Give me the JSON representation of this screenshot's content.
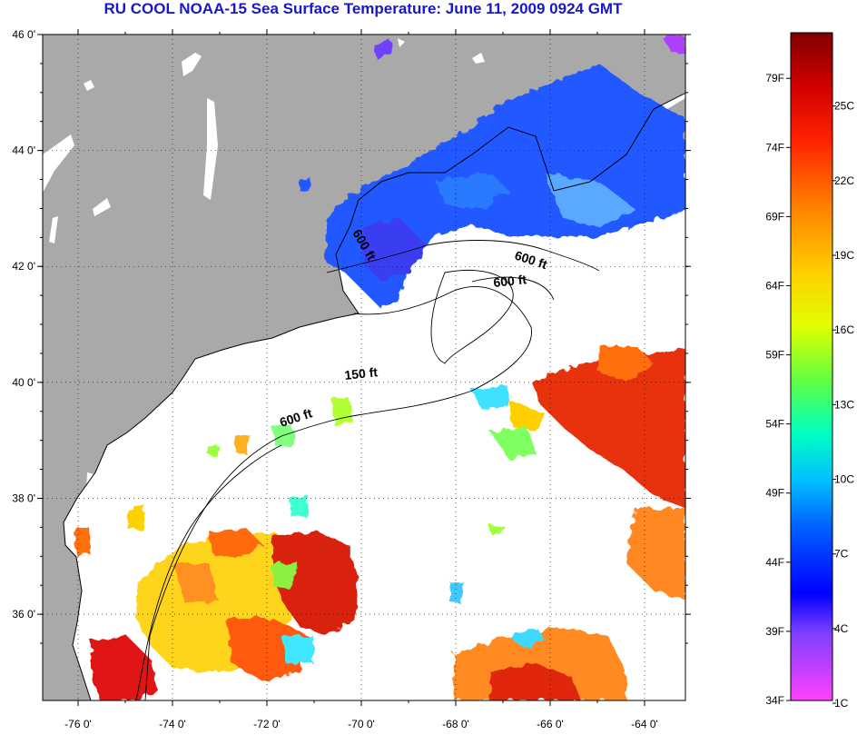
{
  "title": "RU COOL  NOAA-15  Sea Surface Temperature:  June 11, 2009 0924 GMT",
  "map": {
    "lat_ticks": [
      {
        "value": 46,
        "label": "46 0'"
      },
      {
        "value": 44,
        "label": "44 0'"
      },
      {
        "value": 42,
        "label": "42 0'"
      },
      {
        "value": 40,
        "label": "40 0'"
      },
      {
        "value": 38,
        "label": "38 0'"
      },
      {
        "value": 36,
        "label": "36 0'"
      }
    ],
    "lon_ticks": [
      {
        "value": -76,
        "label": "-76 0'"
      },
      {
        "value": -74,
        "label": "-74 0'"
      },
      {
        "value": -72,
        "label": "-72 0'"
      },
      {
        "value": -70,
        "label": "-70 0'"
      },
      {
        "value": -68,
        "label": "-68 0'"
      },
      {
        "value": -66,
        "label": "-66 0'"
      },
      {
        "value": -64,
        "label": "-64 0'"
      }
    ],
    "contour_labels": [
      {
        "text": "600 ft",
        "id": "a"
      },
      {
        "text": "600 ft",
        "id": "b"
      },
      {
        "text": "600 ft",
        "id": "c"
      },
      {
        "text": "150 ft",
        "id": "d"
      },
      {
        "text": "600 ft",
        "id": "e"
      }
    ],
    "colors": {
      "land": "#a9a9a9",
      "water": "#ffffff",
      "cold": "#2050ff",
      "warm": "#e02010"
    }
  },
  "colorbar": {
    "fahrenheit_labels": [
      "79F",
      "74F",
      "69F",
      "64F",
      "59F",
      "54F",
      "49F",
      "44F",
      "39F",
      "34F"
    ],
    "celsius_labels": [
      "25C",
      "22C",
      "19C",
      "16C",
      "13C",
      "10C",
      "7C",
      "4C",
      "1C"
    ],
    "gradient": [
      "#800000",
      "#d00000",
      "#ff2000",
      "#ff8000",
      "#ffd000",
      "#e0ff00",
      "#60ff40",
      "#00ffc0",
      "#00c0ff",
      "#0060ff",
      "#0000ff",
      "#8040ff",
      "#ff40ff"
    ]
  }
}
